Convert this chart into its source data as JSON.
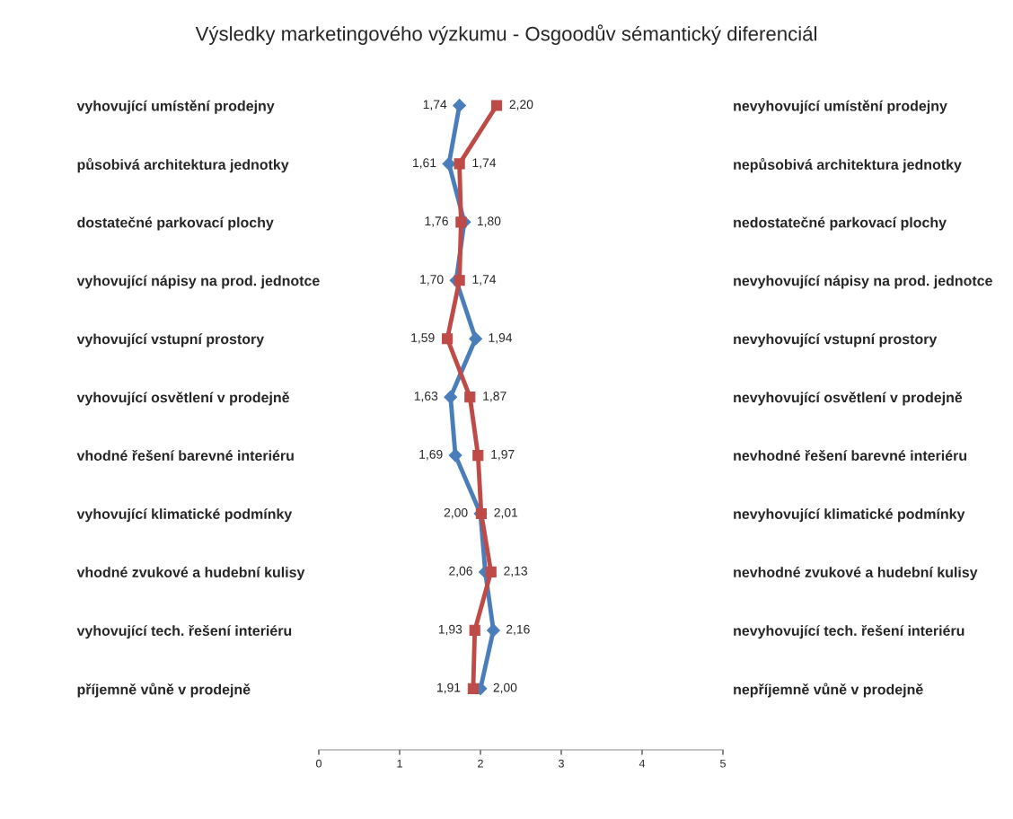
{
  "chart_data": {
    "type": "line",
    "title": "Výsledky marketingového výzkumu - Osgoodův sémantický diferenciál",
    "orientation": "horizontal",
    "categories": [
      "vyhovující umístění prodejny",
      "působivá architektura jednotky",
      "dostatečné parkovací plochy",
      "vyhovující nápisy na prod. jednotce",
      "vyhovující vstupní prostory",
      "vyhovující osvětlení v prodejně",
      "vhodné řešení barevné interiéru",
      "vyhovující klimatické podmínky",
      "vhodné zvukové a hudební kulisy",
      "vyhovující tech. řešení interiéru",
      "příjemně vůně v prodejně"
    ],
    "y2_categories": [
      "nevyhovující umístění prodejny",
      "nepůsobivá architektura jednotky",
      "nedostatečné parkovací plochy",
      "nevyhovující nápisy na prod. jednotce",
      "nevyhovující vstupní prostory",
      "nevyhovující osvětlení v prodejně",
      "nevhodné řešení barevné interiéru",
      "nevyhovující klimatické podmínky",
      "nevhodné zvukové a hudební kulisy",
      "nevyhovující tech. řešení interiéru",
      "nepříjemně vůně v prodejně"
    ],
    "series": [
      {
        "color": "#4a7ebb",
        "marker": "diamond",
        "values": [
          1.74,
          1.61,
          1.8,
          1.7,
          1.94,
          1.63,
          1.69,
          2.0,
          2.06,
          2.16,
          2.0
        ],
        "value_labels": [
          "1,74",
          "1,61",
          "1,80",
          "1,70",
          "1,94",
          "1,63",
          "1,69",
          "2,00",
          "2,06",
          "2,16",
          "2,00"
        ]
      },
      {
        "color": "#be4b48",
        "marker": "square",
        "values": [
          2.2,
          1.74,
          1.76,
          1.74,
          1.59,
          1.87,
          1.97,
          2.01,
          2.13,
          1.93,
          1.91
        ],
        "value_labels": [
          "2,20",
          "1,74",
          "1,76",
          "1,74",
          "1,59",
          "1,87",
          "1,97",
          "2,01",
          "2,13",
          "1,93",
          "1,91"
        ]
      }
    ],
    "xlim": [
      0,
      5
    ],
    "xticks": [
      0,
      1,
      2,
      3,
      4,
      5
    ],
    "grid": false,
    "legend": false
  }
}
